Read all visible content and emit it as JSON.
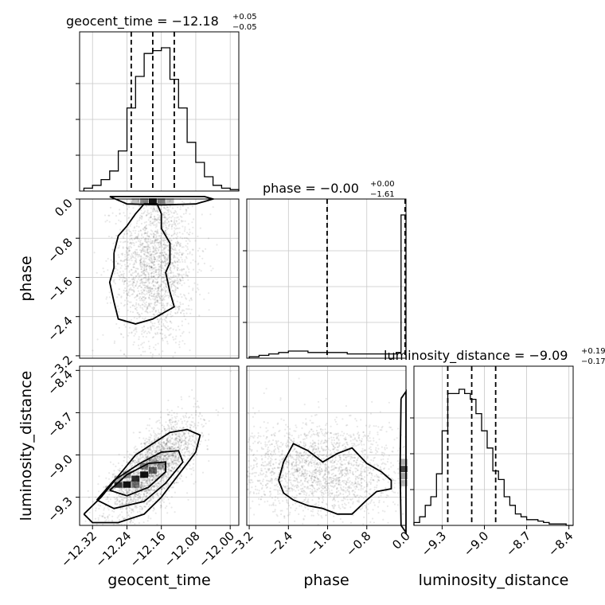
{
  "chart_data": {
    "type": "corner",
    "parameters": [
      {
        "name": "geocent_time",
        "range": [
          -12.35,
          -11.98
        ],
        "ticks": [
          -12.32,
          -12.24,
          -12.16,
          -12.08,
          -12.0
        ],
        "tick_labels": [
          "−12.32",
          "−12.24",
          "−12.16",
          "−12.08",
          "−12.00"
        ],
        "quantiles": [
          -12.23,
          -12.18,
          -12.13
        ],
        "title_main": "geocent_time = −12.18",
        "title_sup": "+0.05",
        "title_sub": "−0.05"
      },
      {
        "name": "phase",
        "range": [
          -3.25,
          0.0
        ],
        "ticks": [
          -3.2,
          -2.4,
          -1.6,
          -0.8,
          0.0
        ],
        "tick_labels": [
          "−3.2",
          "−2.4",
          "−1.6",
          "−0.8",
          "0.0"
        ],
        "quantiles": [
          -1.61,
          0.0,
          0.0
        ],
        "title_main": "phase = −0.00",
        "title_sup": "+0.00",
        "title_sub": "−1.61"
      },
      {
        "name": "luminosity_distance",
        "range": [
          -9.5,
          -8.37
        ],
        "ticks": [
          -9.3,
          -9.0,
          -8.7,
          -8.4
        ],
        "tick_labels": [
          "−9.3",
          "−9.0",
          "−8.7",
          "−8.4"
        ],
        "quantiles": [
          -9.26,
          -9.09,
          -8.92
        ],
        "title_main": "luminosity_distance = −9.09",
        "title_sup": "+0.19",
        "title_sub": "−0.17"
      }
    ],
    "histograms": [
      {
        "bins": [
          -12.34,
          -12.32,
          -12.3,
          -12.28,
          -12.26,
          -12.24,
          -12.22,
          -12.2,
          -12.18,
          -12.16,
          -12.14,
          -12.12,
          -12.1,
          -12.08,
          -12.06,
          -12.04,
          -12.02,
          -12.0
        ],
        "counts": [
          0.02,
          0.04,
          0.08,
          0.14,
          0.28,
          0.58,
          0.8,
          0.96,
          0.98,
          1.0,
          0.78,
          0.58,
          0.34,
          0.2,
          0.1,
          0.04,
          0.02,
          0.01
        ]
      },
      {
        "bins": [
          -3.2,
          -3.0,
          -2.8,
          -2.6,
          -2.4,
          -2.2,
          -2.0,
          -1.8,
          -1.6,
          -1.4,
          -1.2,
          -1.0,
          -0.8,
          -0.6,
          -0.4,
          -0.2,
          -0.1
        ],
        "counts": [
          0.01,
          0.02,
          0.03,
          0.04,
          0.05,
          0.05,
          0.04,
          0.04,
          0.04,
          0.04,
          0.03,
          0.03,
          0.03,
          0.03,
          0.03,
          0.04,
          1.0
        ]
      },
      {
        "bins": [
          -9.5,
          -9.46,
          -9.42,
          -9.38,
          -9.34,
          -9.3,
          -9.26,
          -9.22,
          -9.18,
          -9.14,
          -9.1,
          -9.06,
          -9.02,
          -8.98,
          -8.94,
          -8.9,
          -8.86,
          -8.82,
          -8.78,
          -8.74,
          -8.7,
          -8.66,
          -8.62,
          -8.58,
          -8.54,
          -8.5,
          -8.46,
          -8.42,
          -8.38
        ],
        "counts": [
          0.02,
          0.06,
          0.14,
          0.2,
          0.36,
          0.66,
          0.92,
          0.92,
          0.95,
          0.92,
          0.88,
          0.78,
          0.66,
          0.54,
          0.38,
          0.32,
          0.2,
          0.14,
          0.08,
          0.06,
          0.04,
          0.04,
          0.03,
          0.02,
          0.01,
          0.01,
          0.01,
          0.0
        ]
      }
    ],
    "scatter": [
      {
        "x_param": 0,
        "y_param": 1,
        "x_mean": -12.175,
        "x_sd": 0.045,
        "y_mean": -1.3,
        "y_sd": 0.85,
        "points": 2200
      },
      {
        "x_param": 0,
        "y_param": 2,
        "x_mean": -12.18,
        "x_sd": 0.05,
        "y_mean": -9.1,
        "y_sd": 0.17,
        "rho": 0.7,
        "points": 2600
      },
      {
        "x_param": 1,
        "y_param": 2,
        "x_mean": -1.8,
        "x_sd": 0.9,
        "y_mean": -9.1,
        "y_sd": 0.17,
        "points": 2200
      }
    ],
    "contours": [
      {
        "x_param": 0,
        "y_param": 1,
        "rings": [
          [
            [
              -12.27,
              -1.1
            ],
            [
              -12.26,
              -0.75
            ],
            [
              -12.24,
              -0.55
            ],
            [
              -12.22,
              -0.3
            ],
            [
              -12.2,
              -0.1
            ],
            [
              -12.17,
              -0.1
            ],
            [
              -12.16,
              -0.3
            ],
            [
              -12.16,
              -0.6
            ],
            [
              -12.14,
              -0.9
            ],
            [
              -12.14,
              -1.3
            ],
            [
              -12.15,
              -1.5
            ],
            [
              -12.14,
              -1.9
            ],
            [
              -12.13,
              -2.2
            ],
            [
              -12.15,
              -2.3
            ],
            [
              -12.18,
              -2.45
            ],
            [
              -12.22,
              -2.55
            ],
            [
              -12.26,
              -2.45
            ],
            [
              -12.27,
              -2.1
            ],
            [
              -12.28,
              -1.7
            ],
            [
              -12.27,
              -1.4
            ],
            [
              -12.27,
              -1.1
            ]
          ],
          [
            [
              -12.28,
              0.05
            ],
            [
              -12.24,
              -0.1
            ],
            [
              -12.16,
              -0.12
            ],
            [
              -12.08,
              -0.1
            ],
            [
              -12.04,
              0.0
            ],
            [
              -12.06,
              0.05
            ],
            [
              -12.28,
              0.05
            ]
          ]
        ]
      },
      {
        "x_param": 0,
        "y_param": 2,
        "rings": [
          [
            [
              -12.34,
              -9.42
            ],
            [
              -12.3,
              -9.3
            ],
            [
              -12.26,
              -9.15
            ],
            [
              -12.22,
              -9.0
            ],
            [
              -12.18,
              -8.92
            ],
            [
              -12.14,
              -8.84
            ],
            [
              -12.1,
              -8.82
            ],
            [
              -12.07,
              -8.86
            ],
            [
              -12.08,
              -8.98
            ],
            [
              -12.12,
              -9.14
            ],
            [
              -12.16,
              -9.3
            ],
            [
              -12.2,
              -9.42
            ],
            [
              -12.26,
              -9.48
            ],
            [
              -12.32,
              -9.48
            ],
            [
              -12.34,
              -9.42
            ]
          ],
          [
            [
              -12.31,
              -9.32
            ],
            [
              -12.27,
              -9.18
            ],
            [
              -12.21,
              -9.06
            ],
            [
              -12.16,
              -8.98
            ],
            [
              -12.12,
              -8.97
            ],
            [
              -12.11,
              -9.05
            ],
            [
              -12.15,
              -9.2
            ],
            [
              -12.2,
              -9.33
            ],
            [
              -12.27,
              -9.38
            ],
            [
              -12.31,
              -9.32
            ]
          ],
          [
            [
              -12.28,
              -9.25
            ],
            [
              -12.24,
              -9.14
            ],
            [
              -12.19,
              -9.06
            ],
            [
              -12.15,
              -9.05
            ],
            [
              -12.15,
              -9.12
            ],
            [
              -12.19,
              -9.23
            ],
            [
              -12.24,
              -9.29
            ],
            [
              -12.28,
              -9.25
            ]
          ]
        ]
      },
      {
        "x_param": 1,
        "y_param": 2,
        "rings": [
          [
            [
              -2.6,
              -9.18
            ],
            [
              -2.5,
              -9.05
            ],
            [
              -2.3,
              -8.92
            ],
            [
              -2.0,
              -8.97
            ],
            [
              -1.7,
              -9.05
            ],
            [
              -1.4,
              -8.99
            ],
            [
              -1.1,
              -8.95
            ],
            [
              -0.8,
              -9.06
            ],
            [
              -0.5,
              -9.12
            ],
            [
              -0.3,
              -9.18
            ],
            [
              -0.3,
              -9.24
            ],
            [
              -0.6,
              -9.26
            ],
            [
              -0.8,
              -9.32
            ],
            [
              -1.1,
              -9.42
            ],
            [
              -1.4,
              -9.42
            ],
            [
              -1.7,
              -9.38
            ],
            [
              -2.0,
              -9.36
            ],
            [
              -2.3,
              -9.32
            ],
            [
              -2.5,
              -9.27
            ],
            [
              -2.6,
              -9.18
            ]
          ],
          [
            [
              -0.1,
              -8.6
            ],
            [
              0.0,
              -8.55
            ],
            [
              0.0,
              -9.55
            ],
            [
              -0.1,
              -9.5
            ],
            [
              -0.12,
              -9.1
            ],
            [
              -0.1,
              -8.6
            ]
          ]
        ]
      }
    ],
    "density_cells": [
      {
        "x_param": 0,
        "y_param": 2,
        "cells": [
          [
            -12.26,
            -9.21,
            0.85
          ],
          [
            -12.24,
            -9.21,
            1.0
          ],
          [
            -12.22,
            -9.17,
            0.9
          ],
          [
            -12.2,
            -9.14,
            1.0
          ],
          [
            -12.18,
            -9.11,
            0.65
          ],
          [
            -12.22,
            -9.21,
            0.55
          ],
          [
            -12.26,
            -9.17,
            0.35
          ],
          [
            -12.24,
            -9.14,
            0.45
          ],
          [
            -12.2,
            -9.08,
            0.5
          ],
          [
            -12.18,
            -9.05,
            0.3
          ],
          [
            -12.16,
            -9.08,
            0.3
          ],
          [
            -12.28,
            -9.24,
            0.25
          ]
        ]
      },
      {
        "x_param": 0,
        "y_param": 1,
        "cells": [
          [
            -12.2,
            -0.05,
            0.5
          ],
          [
            -12.18,
            -0.05,
            1.0
          ],
          [
            -12.16,
            -0.05,
            0.55
          ],
          [
            -12.22,
            -0.05,
            0.25
          ],
          [
            -12.14,
            -0.05,
            0.25
          ]
        ]
      },
      {
        "x_param": 1,
        "y_param": 2,
        "cells": [
          [
            -0.05,
            -9.05,
            0.35
          ],
          [
            -0.05,
            -9.1,
            0.8
          ],
          [
            -0.05,
            -9.15,
            0.4
          ],
          [
            -0.05,
            -9.2,
            0.3
          ]
        ]
      }
    ]
  }
}
